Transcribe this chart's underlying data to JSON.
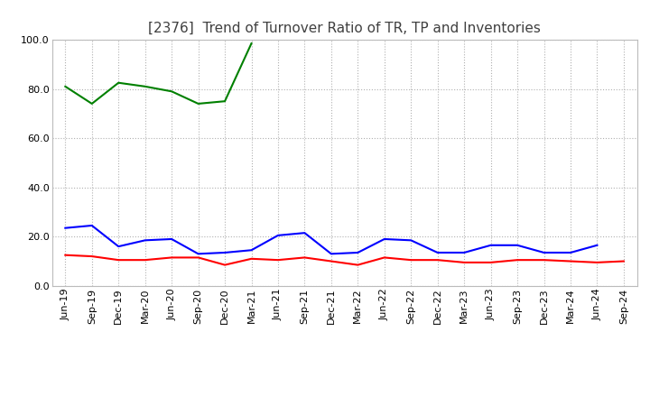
{
  "title": "[2376]  Trend of Turnover Ratio of TR, TP and Inventories",
  "ylim": [
    0.0,
    100.0
  ],
  "yticks": [
    0.0,
    20.0,
    40.0,
    60.0,
    80.0,
    100.0
  ],
  "x_labels": [
    "Jun-19",
    "Sep-19",
    "Dec-19",
    "Mar-20",
    "Jun-20",
    "Sep-20",
    "Dec-20",
    "Mar-21",
    "Jun-21",
    "Sep-21",
    "Dec-21",
    "Mar-22",
    "Jun-22",
    "Sep-22",
    "Dec-22",
    "Mar-23",
    "Jun-23",
    "Sep-23",
    "Dec-23",
    "Mar-24",
    "Jun-24",
    "Sep-24"
  ],
  "trade_receivables": [
    12.5,
    12.0,
    10.5,
    10.5,
    11.5,
    11.5,
    8.5,
    11.0,
    10.5,
    11.5,
    10.0,
    8.5,
    11.5,
    10.5,
    10.5,
    9.5,
    9.5,
    10.5,
    10.5,
    10.0,
    9.5,
    10.0
  ],
  "trade_payables": [
    23.5,
    24.5,
    16.0,
    18.5,
    19.0,
    13.0,
    13.5,
    14.5,
    20.5,
    21.5,
    13.0,
    13.5,
    19.0,
    18.5,
    13.5,
    13.5,
    16.5,
    16.5,
    13.5,
    13.5,
    16.5,
    null
  ],
  "inventories": [
    81.0,
    74.0,
    82.5,
    81.0,
    79.0,
    74.0,
    75.0,
    98.5,
    null,
    null,
    null,
    null,
    null,
    null,
    null,
    null,
    null,
    null,
    null,
    null,
    null,
    null
  ],
  "tr_color": "#ff0000",
  "tp_color": "#0000ff",
  "inv_color": "#008000",
  "bg_color": "#ffffff",
  "grid_color": "#b0b0b0",
  "title_color": "#404040",
  "title_fontsize": 11,
  "legend_fontsize": 9,
  "tick_fontsize": 8
}
